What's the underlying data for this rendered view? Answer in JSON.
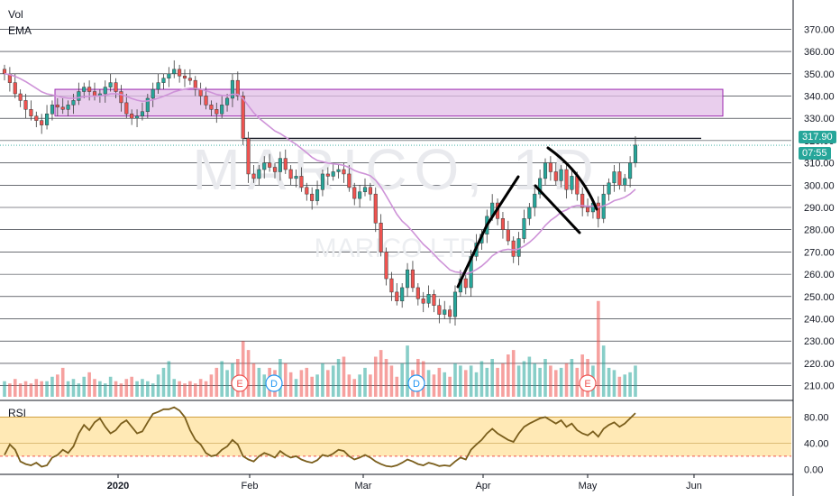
{
  "overlay_labels": {
    "vol": "Vol",
    "ema": "EMA",
    "rsi": "RSI"
  },
  "watermark": {
    "big": "MARICO, 1D",
    "small": "MARICO LTD"
  },
  "price_tags": {
    "last_price": "317.90",
    "countdown": "07:55",
    "last_color": "#26a69a"
  },
  "colors": {
    "up": "#26a69a",
    "down": "#ef5350",
    "ema": "#ce93d8",
    "rsi_line": "#7a5e1c",
    "rsi_band": "#ffe3a3",
    "zone": "#e1bee7"
  },
  "chart_data": [
    {
      "type": "candlestick",
      "title": "",
      "x_ticks": [
        "2020",
        "Feb",
        "Mar",
        "Apr",
        "May",
        "Jun"
      ],
      "y_ticks": [
        "210.00",
        "220.00",
        "230.00",
        "240.00",
        "250.00",
        "260.00",
        "270.00",
        "280.00",
        "290.00",
        "300.00",
        "310.00",
        "320.00",
        "330.00",
        "340.00",
        "350.00",
        "360.00",
        "370.00"
      ],
      "ylim": [
        205,
        375
      ],
      "resistance_zone": [
        331,
        343
      ],
      "resistance_line": 321,
      "last_price": 317.9,
      "earnings_markers": [
        "E",
        "E"
      ],
      "dividend_markers": [
        "D",
        "D"
      ],
      "candles_close": [
        350,
        346,
        341,
        338,
        334,
        331,
        329,
        327,
        332,
        336,
        335,
        334,
        336,
        338,
        342,
        344,
        342,
        340,
        341,
        344,
        346,
        342,
        337,
        332,
        330,
        331,
        333,
        339,
        343,
        346,
        348,
        350,
        352,
        349,
        348,
        347,
        343,
        340,
        336,
        334,
        332,
        336,
        339,
        347,
        340,
        321,
        305,
        303,
        307,
        310,
        308,
        306,
        312,
        307,
        303,
        304,
        299,
        296,
        293,
        298,
        305,
        304,
        306,
        307,
        305,
        299,
        294,
        297,
        299,
        296,
        283,
        270,
        258,
        252,
        248,
        254,
        262,
        254,
        249,
        247,
        251,
        246,
        242,
        244,
        241,
        252,
        258,
        254,
        268,
        274,
        278,
        286,
        292,
        285,
        280,
        275,
        268,
        276,
        285,
        290,
        296,
        303,
        310,
        306,
        302,
        307,
        298,
        304,
        296,
        290,
        288,
        292,
        285,
        296,
        301,
        306,
        300,
        303,
        310,
        318
      ],
      "volume": [
        212,
        211,
        213,
        211,
        212,
        211,
        213,
        212,
        212,
        214,
        215,
        218,
        212,
        213,
        211,
        214,
        216,
        213,
        212,
        211,
        214,
        212,
        211,
        213,
        214,
        212,
        213,
        212,
        211,
        215,
        218,
        221,
        213,
        212,
        211,
        212,
        211,
        213,
        212,
        215,
        218,
        221,
        217,
        220,
        222,
        230,
        226,
        220,
        218,
        215,
        218,
        217,
        222,
        220,
        216,
        213,
        217,
        218,
        214,
        215,
        220,
        217,
        219,
        222,
        223,
        215,
        213,
        215,
        218,
        215,
        223,
        226,
        222,
        219,
        214,
        220,
        228,
        217,
        222,
        221,
        217,
        215,
        218,
        216,
        214,
        220,
        219,
        217,
        219,
        216,
        221,
        218,
        222,
        218,
        220,
        224,
        226,
        219,
        221,
        223,
        220,
        218,
        222,
        219,
        217,
        218,
        220,
        222,
        218,
        224,
        222,
        219,
        248,
        228,
        218,
        217,
        214,
        215,
        216,
        219
      ]
    },
    {
      "type": "line",
      "title": "",
      "series_label": "RSI",
      "y_ticks": [
        "0.00",
        "40.00",
        "80.00"
      ],
      "ylim": [
        -5,
        100
      ],
      "band": [
        20,
        80
      ],
      "values": [
        22,
        38,
        30,
        12,
        8,
        6,
        10,
        4,
        6,
        18,
        22,
        30,
        25,
        35,
        55,
        68,
        60,
        72,
        78,
        65,
        55,
        60,
        70,
        75,
        65,
        55,
        58,
        72,
        85,
        88,
        92,
        92,
        95,
        90,
        80,
        60,
        45,
        38,
        25,
        20,
        22,
        30,
        35,
        45,
        38,
        20,
        15,
        12,
        20,
        25,
        22,
        18,
        28,
        22,
        18,
        20,
        15,
        12,
        10,
        14,
        22,
        20,
        24,
        30,
        28,
        20,
        15,
        18,
        22,
        18,
        12,
        8,
        5,
        4,
        6,
        10,
        15,
        12,
        8,
        6,
        10,
        8,
        5,
        6,
        5,
        12,
        18,
        15,
        30,
        38,
        45,
        55,
        62,
        55,
        50,
        45,
        42,
        55,
        65,
        70,
        74,
        78,
        80,
        75,
        70,
        75,
        65,
        70,
        60,
        55,
        52,
        58,
        50,
        62,
        68,
        72,
        65,
        70,
        78,
        86
      ]
    }
  ]
}
